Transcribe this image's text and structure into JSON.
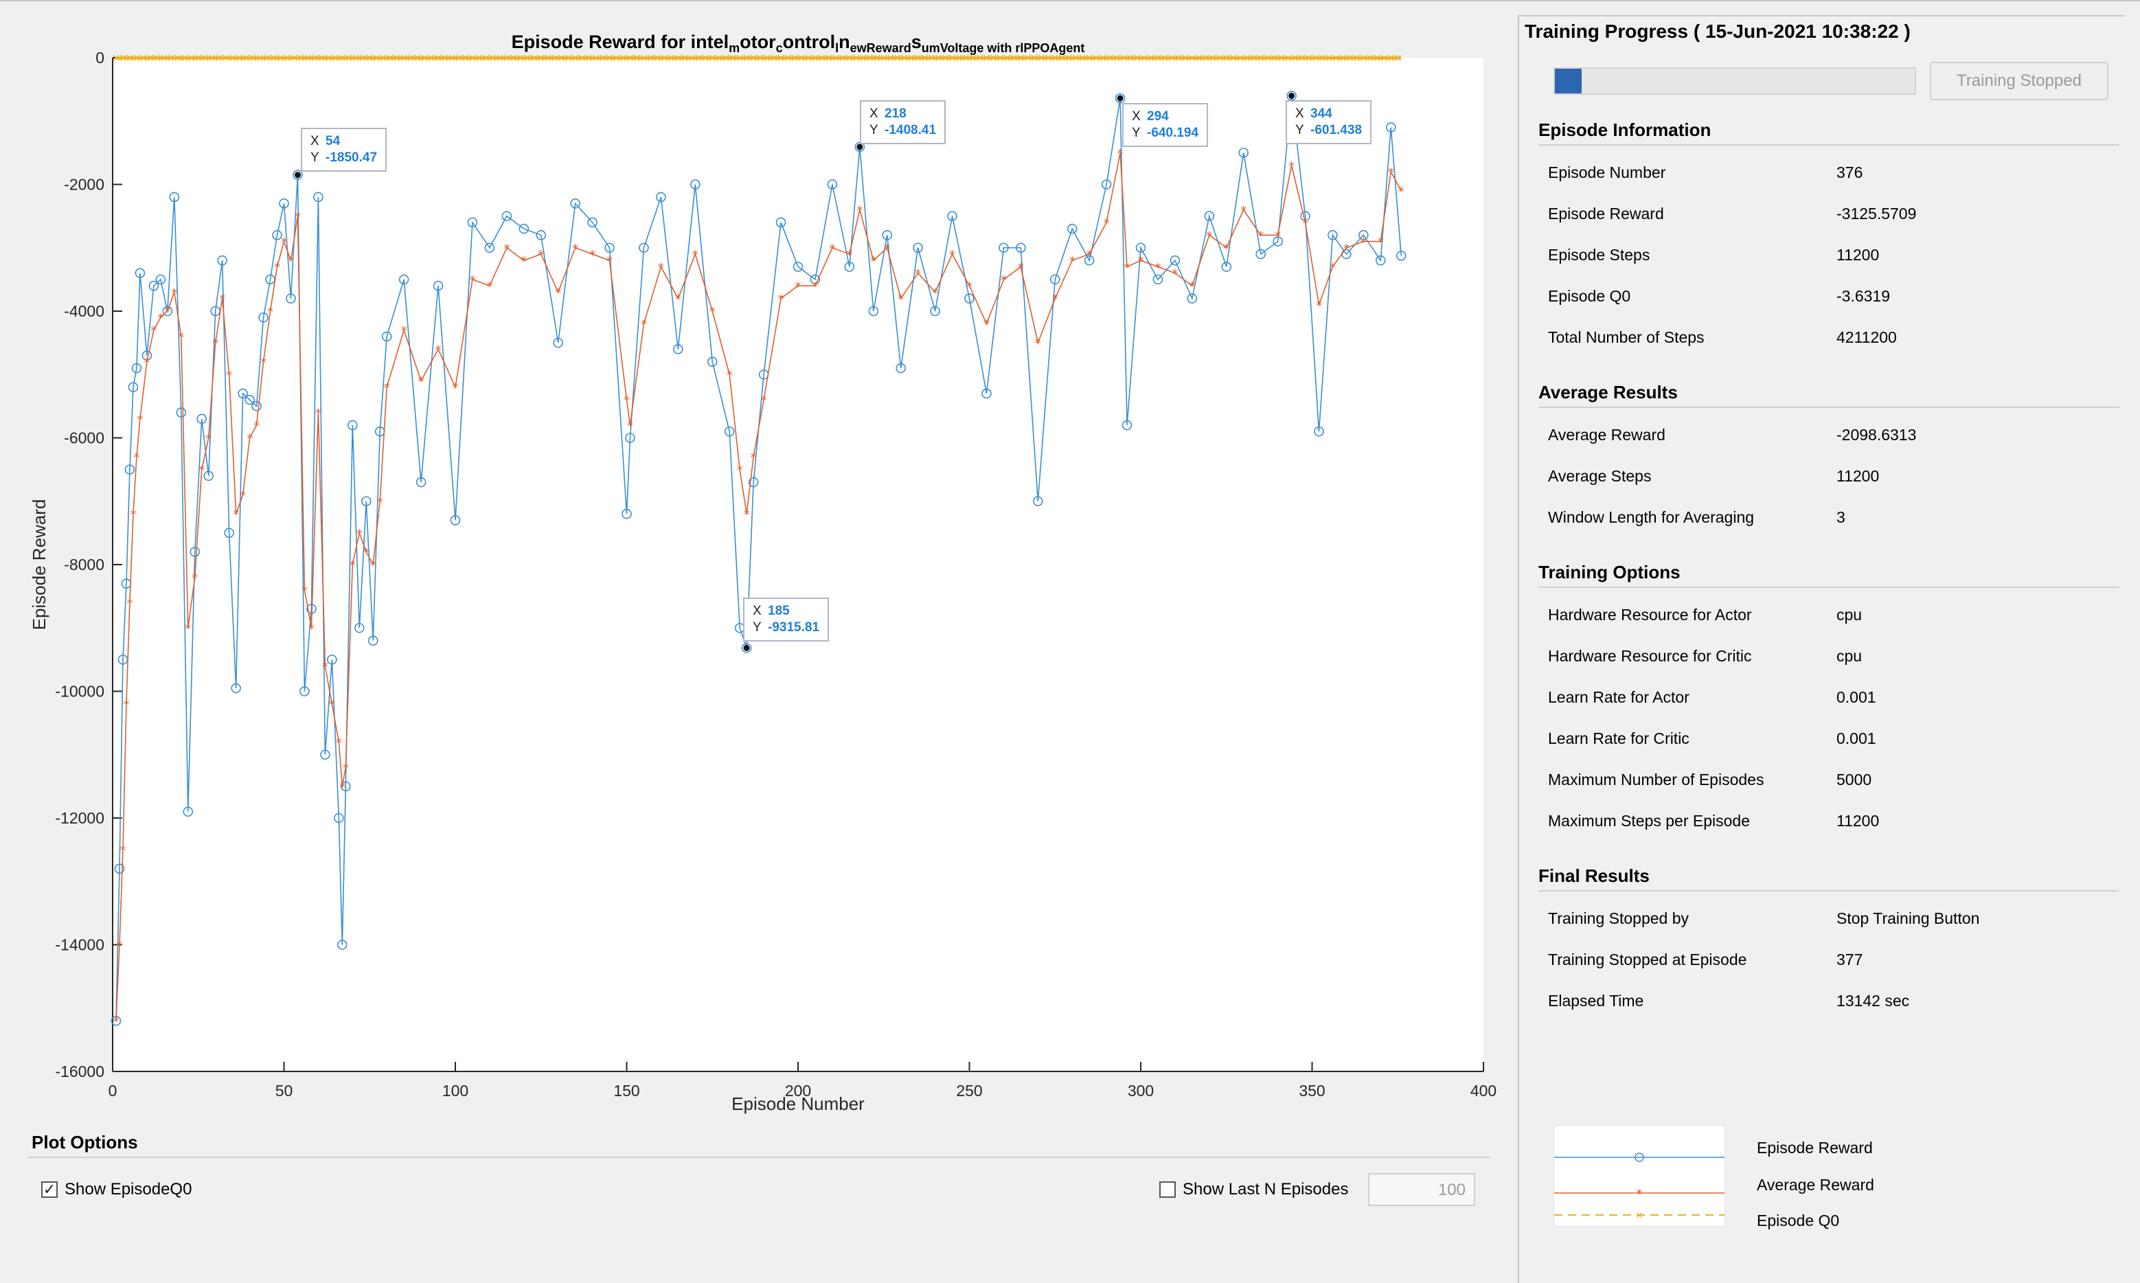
{
  "chart_data": {
    "type": "line",
    "title": "Episode  Reward  for  intel_motor_control_l_newReward_sumVoltage  with  rlPPOAgent",
    "title_parts": [
      "Episode  Reward  for  intel",
      "m",
      "otor",
      "c",
      "ontrol",
      "l",
      "n",
      "ewReward",
      "s",
      "umVoltage  with  rlPPOAgent"
    ],
    "xlabel": "Episode Number",
    "ylabel": "Episode Reward",
    "xlim": [
      0,
      400
    ],
    "ylim": [
      -16000,
      0
    ],
    "xticks": [
      "0",
      "50",
      "100",
      "150",
      "200",
      "250",
      "300",
      "350",
      "400"
    ],
    "yticks": [
      "0",
      "-2000",
      "-4000",
      "-6000",
      "-8000",
      "-10000",
      "-12000",
      "-14000",
      "-16000"
    ],
    "grid": false,
    "series": [
      {
        "name": "Episode Reward",
        "color": "#3a8fd6",
        "marker": "circle",
        "x": [
          1,
          2,
          3,
          4,
          5,
          6,
          7,
          8,
          10,
          12,
          14,
          16,
          18,
          20,
          22,
          24,
          26,
          28,
          30,
          32,
          34,
          36,
          38,
          40,
          42,
          44,
          46,
          48,
          50,
          52,
          54,
          56,
          58,
          60,
          62,
          64,
          66,
          67,
          68,
          70,
          72,
          74,
          76,
          78,
          80,
          85,
          90,
          95,
          100,
          105,
          110,
          115,
          120,
          125,
          130,
          135,
          140,
          145,
          150,
          151,
          155,
          160,
          165,
          170,
          175,
          180,
          183,
          185,
          187,
          190,
          195,
          200,
          205,
          210,
          215,
          218,
          222,
          226,
          230,
          235,
          240,
          245,
          250,
          255,
          260,
          265,
          270,
          275,
          280,
          285,
          290,
          294,
          296,
          300,
          305,
          310,
          315,
          320,
          325,
          330,
          335,
          340,
          344,
          348,
          352,
          356,
          360,
          365,
          370,
          373,
          376
        ],
        "y": [
          -15200,
          -12800,
          -9500,
          -8300,
          -6500,
          -5200,
          -4900,
          -3400,
          -4700,
          -3600,
          -3500,
          -4000,
          -2200,
          -5600,
          -11900,
          -7800,
          -5700,
          -6600,
          -4000,
          -3200,
          -7500,
          -9950,
          -5300,
          -5400,
          -5500,
          -4100,
          -3500,
          -2800,
          -2300,
          -3800,
          -1850,
          -10000,
          -8700,
          -2200,
          -11000,
          -9500,
          -12000,
          -14000,
          -11500,
          -5800,
          -9000,
          -7000,
          -9200,
          -5900,
          -4400,
          -3500,
          -6700,
          -3600,
          -7300,
          -2600,
          -3000,
          -2500,
          -2700,
          -2800,
          -4500,
          -2300,
          -2600,
          -3000,
          -7200,
          -6000,
          -3000,
          -2200,
          -4600,
          -2000,
          -4800,
          -5900,
          -9000,
          -9315.81,
          -6700,
          -5000,
          -2600,
          -3300,
          -3500,
          -2000,
          -3300,
          -1408.41,
          -4000,
          -2800,
          -4900,
          -3000,
          -4000,
          -2500,
          -3800,
          -5300,
          -3000,
          -3000,
          -7000,
          -3500,
          -2700,
          -3200,
          -2000,
          -640.194,
          -5800,
          -3000,
          -3500,
          -3200,
          -3800,
          -2500,
          -3300,
          -1500,
          -3100,
          -2900,
          -601.438,
          -2500,
          -5900,
          -2800,
          -3100,
          -2800,
          -3200,
          -1100,
          -3125.57
        ]
      },
      {
        "name": "Average Reward",
        "color": "#e0602c",
        "marker": "asterisk",
        "x": [
          1,
          2,
          3,
          4,
          5,
          6,
          7,
          8,
          10,
          12,
          14,
          16,
          18,
          20,
          22,
          24,
          26,
          28,
          30,
          32,
          34,
          36,
          38,
          40,
          42,
          44,
          46,
          48,
          50,
          52,
          54,
          56,
          58,
          60,
          62,
          64,
          66,
          67,
          68,
          70,
          72,
          74,
          76,
          78,
          80,
          85,
          90,
          95,
          100,
          105,
          110,
          115,
          120,
          125,
          130,
          135,
          140,
          145,
          150,
          151,
          155,
          160,
          165,
          170,
          175,
          180,
          183,
          185,
          187,
          190,
          195,
          200,
          205,
          210,
          215,
          218,
          222,
          226,
          230,
          235,
          240,
          245,
          250,
          255,
          260,
          265,
          270,
          275,
          280,
          285,
          290,
          294,
          296,
          300,
          305,
          310,
          315,
          320,
          325,
          330,
          335,
          340,
          344,
          348,
          352,
          356,
          360,
          365,
          370,
          373,
          376
        ],
        "y": [
          -15200,
          -14000,
          -12500,
          -10200,
          -8600,
          -7200,
          -6300,
          -5700,
          -4800,
          -4300,
          -4100,
          -4000,
          -3700,
          -4400,
          -9000,
          -8200,
          -6500,
          -6000,
          -4500,
          -3800,
          -5000,
          -7200,
          -6900,
          -6000,
          -5800,
          -4800,
          -4000,
          -3300,
          -2900,
          -3200,
          -2500,
          -8400,
          -9000,
          -5600,
          -9600,
          -10200,
          -10800,
          -11500,
          -11200,
          -8000,
          -7500,
          -7800,
          -8000,
          -7000,
          -5200,
          -4300,
          -5100,
          -4600,
          -5200,
          -3500,
          -3600,
          -3000,
          -3200,
          -3100,
          -3700,
          -3000,
          -3100,
          -3200,
          -5400,
          -5800,
          -4200,
          -3300,
          -3800,
          -3100,
          -4000,
          -5000,
          -6500,
          -7200,
          -6300,
          -5400,
          -3800,
          -3600,
          -3600,
          -3000,
          -3100,
          -2400,
          -3200,
          -3000,
          -3800,
          -3400,
          -3700,
          -3100,
          -3600,
          -4200,
          -3500,
          -3300,
          -4500,
          -3800,
          -3200,
          -3100,
          -2600,
          -1500,
          -3300,
          -3200,
          -3300,
          -3400,
          -3600,
          -2800,
          -3000,
          -2400,
          -2800,
          -2800,
          -1700,
          -2600,
          -3900,
          -3300,
          -3000,
          -2900,
          -2900,
          -1800,
          -2100
        ]
      },
      {
        "name": "Episode Q0",
        "color": "#edb120",
        "marker": "x",
        "x": [
          1,
          376
        ],
        "y": [
          -3.6,
          -3.6
        ]
      }
    ],
    "datatips": [
      {
        "x_label": "X",
        "x": "54",
        "y_label": "Y",
        "y": "-1850.47"
      },
      {
        "x_label": "X",
        "x": "218",
        "y_label": "Y",
        "y": "-1408.41"
      },
      {
        "x_label": "X",
        "x": "294",
        "y_label": "Y",
        "y": "-640.194"
      },
      {
        "x_label": "X",
        "x": "344",
        "y_label": "Y",
        "y": "-601.438"
      },
      {
        "x_label": "X",
        "x": "185",
        "y_label": "Y",
        "y": "-9315.81"
      }
    ]
  },
  "plot_options": {
    "title": "Plot Options",
    "show_q0_label": "Show EpisodeQ0",
    "show_q0_checked": true,
    "check_glyph": "✓",
    "show_last_n_label": "Show Last N Episodes",
    "show_last_n_checked": false,
    "last_n_value": "100"
  },
  "panel": {
    "title": "Training Progress ( 15-Jun-2021 10:38:22 )",
    "progress_fraction": 0.075,
    "stop_button_label": "Training Stopped",
    "sections": [
      {
        "title": "Episode Information",
        "rows": [
          {
            "label": "Episode Number",
            "value": "376"
          },
          {
            "label": "Episode Reward",
            "value": "-3125.5709"
          },
          {
            "label": "Episode Steps",
            "value": "11200"
          },
          {
            "label": "Episode Q0",
            "value": "-3.6319"
          },
          {
            "label": "Total Number of Steps",
            "value": "4211200"
          }
        ]
      },
      {
        "title": "Average Results",
        "rows": [
          {
            "label": "Average Reward",
            "value": "-2098.6313"
          },
          {
            "label": "Average Steps",
            "value": "11200"
          },
          {
            "label": "Window Length for Averaging",
            "value": "3"
          }
        ]
      },
      {
        "title": "Training Options",
        "rows": [
          {
            "label": "Hardware Resource for Actor",
            "value": "cpu"
          },
          {
            "label": "Hardware Resource for Critic",
            "value": "cpu"
          },
          {
            "label": "Learn Rate for Actor",
            "value": "0.001"
          },
          {
            "label": "Learn Rate for Critic",
            "value": "0.001"
          },
          {
            "label": "Maximum Number of Episodes",
            "value": "5000"
          },
          {
            "label": "Maximum Steps per Episode",
            "value": "11200"
          }
        ]
      },
      {
        "title": "Final Results",
        "rows": [
          {
            "label": "Training Stopped by",
            "value": "Stop Training Button"
          },
          {
            "label": "Training Stopped at Episode",
            "value": "377"
          },
          {
            "label": "Elapsed Time",
            "value": "13142 sec"
          }
        ]
      }
    ],
    "legend": [
      {
        "label": "Episode Reward",
        "color": "#3a8fd6",
        "marker": "circle"
      },
      {
        "label": "Average Reward",
        "color": "#e0602c",
        "marker": "asterisk"
      },
      {
        "label": "Episode Q0",
        "color": "#edb120",
        "marker": "x"
      }
    ]
  }
}
